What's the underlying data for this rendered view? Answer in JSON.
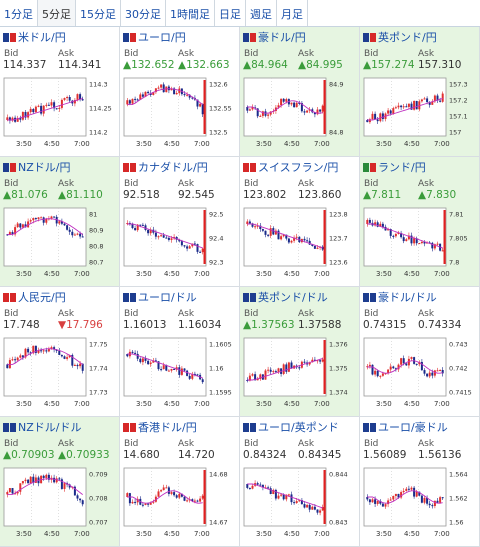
{
  "tabs": [
    {
      "label": "1分足",
      "active": false
    },
    {
      "label": "5分足",
      "active": true
    },
    {
      "label": "15分足",
      "active": false
    },
    {
      "label": "30分足",
      "active": false
    },
    {
      "label": "1時間足",
      "active": false
    },
    {
      "label": "日足",
      "active": false
    },
    {
      "label": "週足",
      "active": false
    },
    {
      "label": "月足",
      "active": false
    }
  ],
  "bid_label": "Bid",
  "ask_label": "Ask",
  "time_labels": [
    "3:50",
    "4:50",
    "7:00"
  ],
  "colors": {
    "up": "#3a9c3a",
    "down": "#d84040",
    "candle_up": "#e03030",
    "candle_down": "#1a2a8a",
    "ma": "#c030c0",
    "spike": "#e02020",
    "highlight": "#e6f5e1"
  },
  "panels": [
    {
      "name": "米ドル/円",
      "flags": [
        "#1e3d8f",
        "#d62828"
      ],
      "bid": "114.337",
      "ask": "114.341",
      "bid_dir": "",
      "ask_dir": "",
      "highlight": false,
      "yticks": [
        "114.3",
        "114.25",
        "114.2"
      ],
      "trend": "down",
      "spike": false
    },
    {
      "name": "ユーロ/円",
      "flags": [
        "#1e3d8f",
        "#d62828"
      ],
      "bid": "▲132.652",
      "ask": "▲132.663",
      "bid_dir": "up",
      "ask_dir": "up",
      "highlight": false,
      "yticks": [
        "132.6",
        "132.55",
        "132.5"
      ],
      "trend": "dipup",
      "spike": true
    },
    {
      "name": "豪ドル/円",
      "flags": [
        "#1e3d8f",
        "#d62828"
      ],
      "bid": "▲84.964",
      "ask": "▲84.995",
      "bid_dir": "up",
      "ask_dir": "up",
      "highlight": true,
      "yticks": [
        "84.9",
        "84.8"
      ],
      "trend": "flat",
      "spike": true
    },
    {
      "name": "英ポンド/円",
      "flags": [
        "#1e3d8f",
        "#d62828"
      ],
      "bid": "▲157.274",
      "ask": "157.310",
      "bid_dir": "up",
      "ask_dir": "",
      "highlight": true,
      "yticks": [
        "157.3",
        "157.2",
        "157.1",
        "157"
      ],
      "trend": "down",
      "spike": false
    },
    {
      "name": "NZドル/円",
      "flags": [
        "#1e3d8f",
        "#d62828"
      ],
      "bid": "▲81.076",
      "ask": "▲81.110",
      "bid_dir": "up",
      "ask_dir": "up",
      "highlight": true,
      "yticks": [
        "81",
        "80.9",
        "80.8",
        "80.7"
      ],
      "trend": "dipup",
      "spike": false
    },
    {
      "name": "カナダドル/円",
      "flags": [
        "#d62828",
        "#d62828"
      ],
      "bid": "92.518",
      "ask": "92.545",
      "bid_dir": "",
      "ask_dir": "",
      "highlight": false,
      "yticks": [
        "92.5",
        "92.4",
        "92.3"
      ],
      "trend": "up",
      "spike": true
    },
    {
      "name": "スイスフラン/円",
      "flags": [
        "#d62828",
        "#d62828"
      ],
      "bid": "123.802",
      "ask": "123.860",
      "bid_dir": "",
      "ask_dir": "",
      "highlight": false,
      "yticks": [
        "123.8",
        "123.7",
        "123.6"
      ],
      "trend": "up",
      "spike": true
    },
    {
      "name": "ランド/円",
      "flags": [
        "#2a8a3a",
        "#d62828"
      ],
      "bid": "▲7.811",
      "ask": "▲7.830",
      "bid_dir": "up",
      "ask_dir": "up",
      "highlight": true,
      "yticks": [
        "7.81",
        "7.805",
        "7.8"
      ],
      "trend": "up",
      "spike": true
    },
    {
      "name": "人民元/円",
      "flags": [
        "#d62828",
        "#d62828"
      ],
      "bid": "17.748",
      "ask": "▼17.796",
      "bid_dir": "",
      "ask_dir": "dn",
      "highlight": false,
      "yticks": [
        "17.75",
        "17.74",
        "17.73"
      ],
      "trend": "dipup",
      "spike": false
    },
    {
      "name": "ユーロ/ドル",
      "flags": [
        "#1e3d8f",
        "#1e3d8f"
      ],
      "bid": "1.16013",
      "ask": "1.16034",
      "bid_dir": "",
      "ask_dir": "",
      "highlight": false,
      "yticks": [
        "1.1605",
        "1.16",
        "1.1595"
      ],
      "trend": "up",
      "spike": false
    },
    {
      "name": "英ポンド/ドル",
      "flags": [
        "#1e3d8f",
        "#1e3d8f"
      ],
      "bid": "▲1.37563",
      "ask": "1.37588",
      "bid_dir": "up",
      "ask_dir": "",
      "highlight": true,
      "yticks": [
        "1.376",
        "1.375",
        "1.374"
      ],
      "trend": "down",
      "spike": true
    },
    {
      "name": "豪ドル/ドル",
      "flags": [
        "#1e3d8f",
        "#1e3d8f"
      ],
      "bid": "0.74315",
      "ask": "0.74334",
      "bid_dir": "",
      "ask_dir": "",
      "highlight": false,
      "yticks": [
        "0.743",
        "0.742",
        "0.7415"
      ],
      "trend": "flat",
      "spike": false
    },
    {
      "name": "NZドル/ドル",
      "flags": [
        "#1e3d8f",
        "#1e3d8f"
      ],
      "bid": "▲0.70903",
      "ask": "▲0.70933",
      "bid_dir": "up",
      "ask_dir": "up",
      "highlight": true,
      "yticks": [
        "0.709",
        "0.708",
        "0.707"
      ],
      "trend": "dipup",
      "spike": false
    },
    {
      "name": "香港ドル/円",
      "flags": [
        "#d62828",
        "#d62828"
      ],
      "bid": "14.680",
      "ask": "14.720",
      "bid_dir": "",
      "ask_dir": "",
      "highlight": false,
      "yticks": [
        "14.68",
        "14.67"
      ],
      "trend": "flat",
      "spike": true
    },
    {
      "name": "ユーロ/英ポンド",
      "flags": [
        "#1e3d8f",
        "#1e3d8f"
      ],
      "bid": "0.84324",
      "ask": "0.84345",
      "bid_dir": "",
      "ask_dir": "",
      "highlight": false,
      "yticks": [
        "0.844",
        "0.843"
      ],
      "trend": "up",
      "spike": true
    },
    {
      "name": "ユーロ/豪ドル",
      "flags": [
        "#1e3d8f",
        "#1e3d8f"
      ],
      "bid": "1.56089",
      "ask": "1.56136",
      "bid_dir": "",
      "ask_dir": "",
      "highlight": false,
      "yticks": [
        "1.564",
        "1.562",
        "1.56"
      ],
      "trend": "flat",
      "spike": false
    }
  ]
}
